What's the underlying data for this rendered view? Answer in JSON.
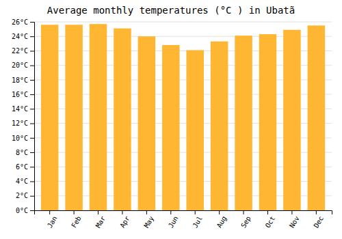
{
  "chart_data": {
    "type": "bar",
    "title": "Average monthly temperatures (°C ) in Ubatã",
    "categories": [
      "Jan",
      "Feb",
      "Mar",
      "Apr",
      "May",
      "Jun",
      "Jul",
      "Aug",
      "Sep",
      "Oct",
      "Nov",
      "Dec"
    ],
    "values": [
      25.6,
      25.6,
      25.7,
      25.1,
      24.0,
      22.8,
      22.1,
      23.3,
      24.1,
      24.3,
      24.9,
      25.5
    ],
    "color": "#FFB733",
    "ylim": [
      0,
      26
    ],
    "yticks": [
      {
        "value": 0,
        "label": "0°C"
      },
      {
        "value": 2,
        "label": "2°C"
      },
      {
        "value": 4,
        "label": "4°C"
      },
      {
        "value": 6,
        "label": "6°C"
      },
      {
        "value": 8,
        "label": "8°C"
      },
      {
        "value": 10,
        "label": "10°C"
      },
      {
        "value": 12,
        "label": "12°C"
      },
      {
        "value": 14,
        "label": "14°C"
      },
      {
        "value": 16,
        "label": "16°C"
      },
      {
        "value": 18,
        "label": "18°C"
      },
      {
        "value": 20,
        "label": "20°C"
      },
      {
        "value": 22,
        "label": "22°C"
      },
      {
        "value": 24,
        "label": "24°C"
      },
      {
        "value": 26,
        "label": "26°C"
      }
    ],
    "grid": true
  }
}
